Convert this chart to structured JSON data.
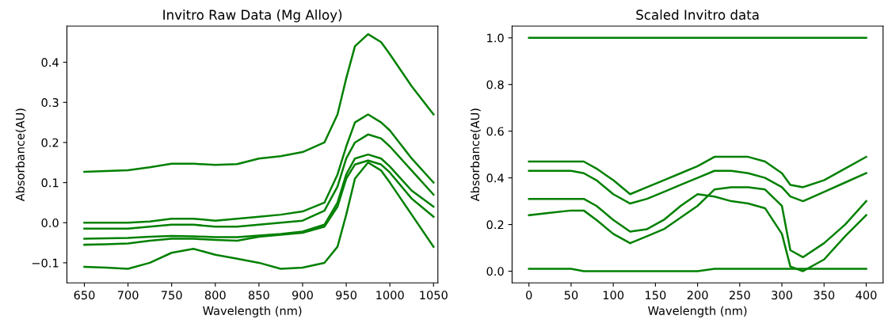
{
  "chart_data": [
    {
      "type": "line",
      "title": "Invitro Raw Data (Mg Alloy)",
      "xlabel": "Wavelength (nm)",
      "ylabel": "Absorbance(AU)",
      "x": [
        650,
        675,
        700,
        725,
        750,
        775,
        800,
        825,
        850,
        875,
        900,
        925,
        940,
        950,
        960,
        975,
        990,
        1000,
        1025,
        1050
      ],
      "xlim": [
        630,
        1055
      ],
      "ylim": [
        -0.15,
        0.49
      ],
      "xticks": [
        650,
        700,
        750,
        800,
        850,
        900,
        950,
        1000,
        1050
      ],
      "yticks": [
        {
          "value": -0.1,
          "label": "−0.1"
        },
        {
          "value": 0.0,
          "label": "0.0"
        },
        {
          "value": 0.1,
          "label": "0.1"
        },
        {
          "value": 0.2,
          "label": "0.2"
        },
        {
          "value": 0.3,
          "label": "0.3"
        },
        {
          "value": 0.4,
          "label": "0.4"
        }
      ],
      "grid": false,
      "marker": "none",
      "line_style": "solid",
      "series": [
        {
          "color": "#008000",
          "values": [
            0.127,
            0.129,
            0.131,
            0.138,
            0.147,
            0.147,
            0.144,
            0.146,
            0.16,
            0.166,
            0.176,
            0.2,
            0.27,
            0.36,
            0.44,
            0.47,
            0.45,
            0.42,
            0.34,
            0.27
          ]
        },
        {
          "color": "#008000",
          "values": [
            0.0,
            0.0,
            0.0,
            0.003,
            0.01,
            0.01,
            0.005,
            0.01,
            0.015,
            0.02,
            0.028,
            0.05,
            0.12,
            0.19,
            0.25,
            0.27,
            0.25,
            0.23,
            0.16,
            0.1
          ]
        },
        {
          "color": "#008000",
          "values": [
            -0.015,
            -0.015,
            -0.015,
            -0.01,
            -0.005,
            -0.005,
            -0.01,
            -0.01,
            -0.005,
            0.0,
            0.005,
            0.03,
            0.09,
            0.16,
            0.2,
            0.22,
            0.21,
            0.19,
            0.13,
            0.07
          ]
        },
        {
          "color": "#008000",
          "values": [
            -0.04,
            -0.039,
            -0.038,
            -0.035,
            -0.033,
            -0.034,
            -0.036,
            -0.036,
            -0.032,
            -0.028,
            -0.022,
            -0.005,
            0.05,
            0.12,
            0.16,
            0.17,
            0.16,
            0.14,
            0.08,
            0.04
          ]
        },
        {
          "color": "#008000",
          "values": [
            -0.055,
            -0.054,
            -0.052,
            -0.045,
            -0.04,
            -0.04,
            -0.043,
            -0.045,
            -0.035,
            -0.03,
            -0.025,
            -0.01,
            0.04,
            0.11,
            0.145,
            0.155,
            0.145,
            0.125,
            0.06,
            0.015
          ]
        },
        {
          "color": "#008000",
          "values": [
            -0.11,
            -0.112,
            -0.115,
            -0.1,
            -0.075,
            -0.065,
            -0.08,
            -0.09,
            -0.1,
            -0.115,
            -0.112,
            -0.1,
            -0.06,
            0.02,
            0.11,
            0.15,
            0.13,
            0.1,
            0.02,
            -0.06
          ]
        }
      ]
    },
    {
      "type": "line",
      "title": "Scaled Invitro data",
      "xlabel": "Wavelength (nm)",
      "ylabel": "Absorbance(AU)",
      "x": [
        0,
        25,
        50,
        65,
        80,
        100,
        120,
        140,
        160,
        180,
        200,
        220,
        240,
        260,
        280,
        300,
        310,
        325,
        350,
        375,
        400
      ],
      "xlim": [
        -20,
        420
      ],
      "ylim": [
        -0.05,
        1.05
      ],
      "xticks": [
        0,
        50,
        100,
        150,
        200,
        250,
        300,
        350,
        400
      ],
      "yticks": [
        {
          "value": 0.0,
          "label": "0.0"
        },
        {
          "value": 0.2,
          "label": "0.2"
        },
        {
          "value": 0.4,
          "label": "0.4"
        },
        {
          "value": 0.6,
          "label": "0.6"
        },
        {
          "value": 0.8,
          "label": "0.8"
        },
        {
          "value": 1.0,
          "label": "1.0"
        }
      ],
      "grid": false,
      "marker": "none",
      "line_style": "solid",
      "series": [
        {
          "color": "#008000",
          "values": [
            1.0,
            1.0,
            1.0,
            1.0,
            1.0,
            1.0,
            1.0,
            1.0,
            1.0,
            1.0,
            1.0,
            1.0,
            1.0,
            1.0,
            1.0,
            1.0,
            1.0,
            1.0,
            1.0,
            1.0,
            1.0
          ]
        },
        {
          "color": "#008000",
          "values": [
            0.47,
            0.47,
            0.47,
            0.47,
            0.44,
            0.39,
            0.33,
            0.36,
            0.39,
            0.42,
            0.45,
            0.49,
            0.49,
            0.49,
            0.47,
            0.42,
            0.37,
            0.36,
            0.39,
            0.44,
            0.49
          ]
        },
        {
          "color": "#008000",
          "values": [
            0.43,
            0.43,
            0.43,
            0.42,
            0.39,
            0.33,
            0.29,
            0.31,
            0.34,
            0.37,
            0.4,
            0.43,
            0.43,
            0.42,
            0.4,
            0.36,
            0.32,
            0.3,
            0.34,
            0.38,
            0.42
          ]
        },
        {
          "color": "#008000",
          "values": [
            0.31,
            0.31,
            0.31,
            0.31,
            0.28,
            0.22,
            0.17,
            0.18,
            0.22,
            0.28,
            0.33,
            0.32,
            0.3,
            0.29,
            0.27,
            0.16,
            0.02,
            0.0,
            0.05,
            0.15,
            0.24
          ]
        },
        {
          "color": "#008000",
          "values": [
            0.24,
            0.25,
            0.26,
            0.26,
            0.22,
            0.16,
            0.12,
            0.15,
            0.18,
            0.23,
            0.28,
            0.35,
            0.36,
            0.36,
            0.35,
            0.28,
            0.09,
            0.06,
            0.12,
            0.2,
            0.3
          ]
        },
        {
          "color": "#008000",
          "values": [
            0.01,
            0.01,
            0.01,
            0.0,
            0.0,
            0.0,
            0.0,
            0.0,
            0.0,
            0.0,
            0.0,
            0.01,
            0.01,
            0.01,
            0.01,
            0.01,
            0.01,
            0.01,
            0.01,
            0.01,
            0.01
          ]
        }
      ]
    }
  ]
}
